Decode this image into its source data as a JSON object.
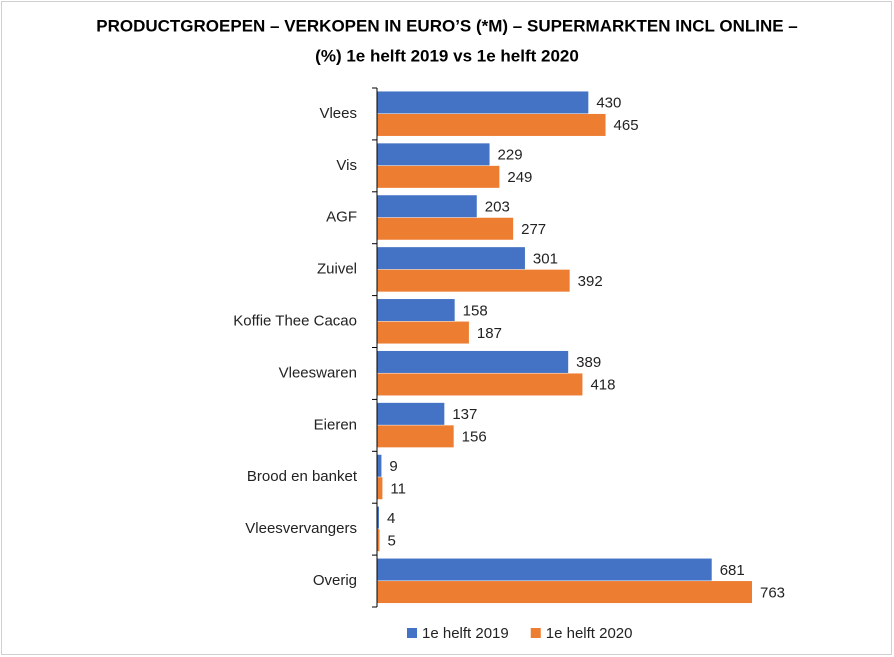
{
  "chart_data": {
    "type": "bar",
    "orientation": "horizontal",
    "title": [
      "PRODUCTGROEPEN – VERKOPEN IN EURO’S (*M) – SUPERMARKTEN INCL ONLINE –",
      "(%) 1e helft 2019 vs 1e helft 2020"
    ],
    "categories": [
      "Vlees",
      "Vis",
      "AGF",
      "Zuivel",
      "Koffie Thee Cacao",
      "Vleeswaren",
      "Eieren",
      "Brood en banket",
      "Vleesvervangers",
      "Overig"
    ],
    "series": [
      {
        "name": "1e helft 2019",
        "color": "#4472c4",
        "values": [
          430,
          229,
          203,
          301,
          158,
          389,
          137,
          9,
          4,
          681
        ]
      },
      {
        "name": "1e helft 2020",
        "color": "#ed7d31",
        "values": [
          465,
          249,
          277,
          392,
          187,
          418,
          156,
          11,
          5,
          763
        ]
      }
    ],
    "legend": "bottom"
  }
}
